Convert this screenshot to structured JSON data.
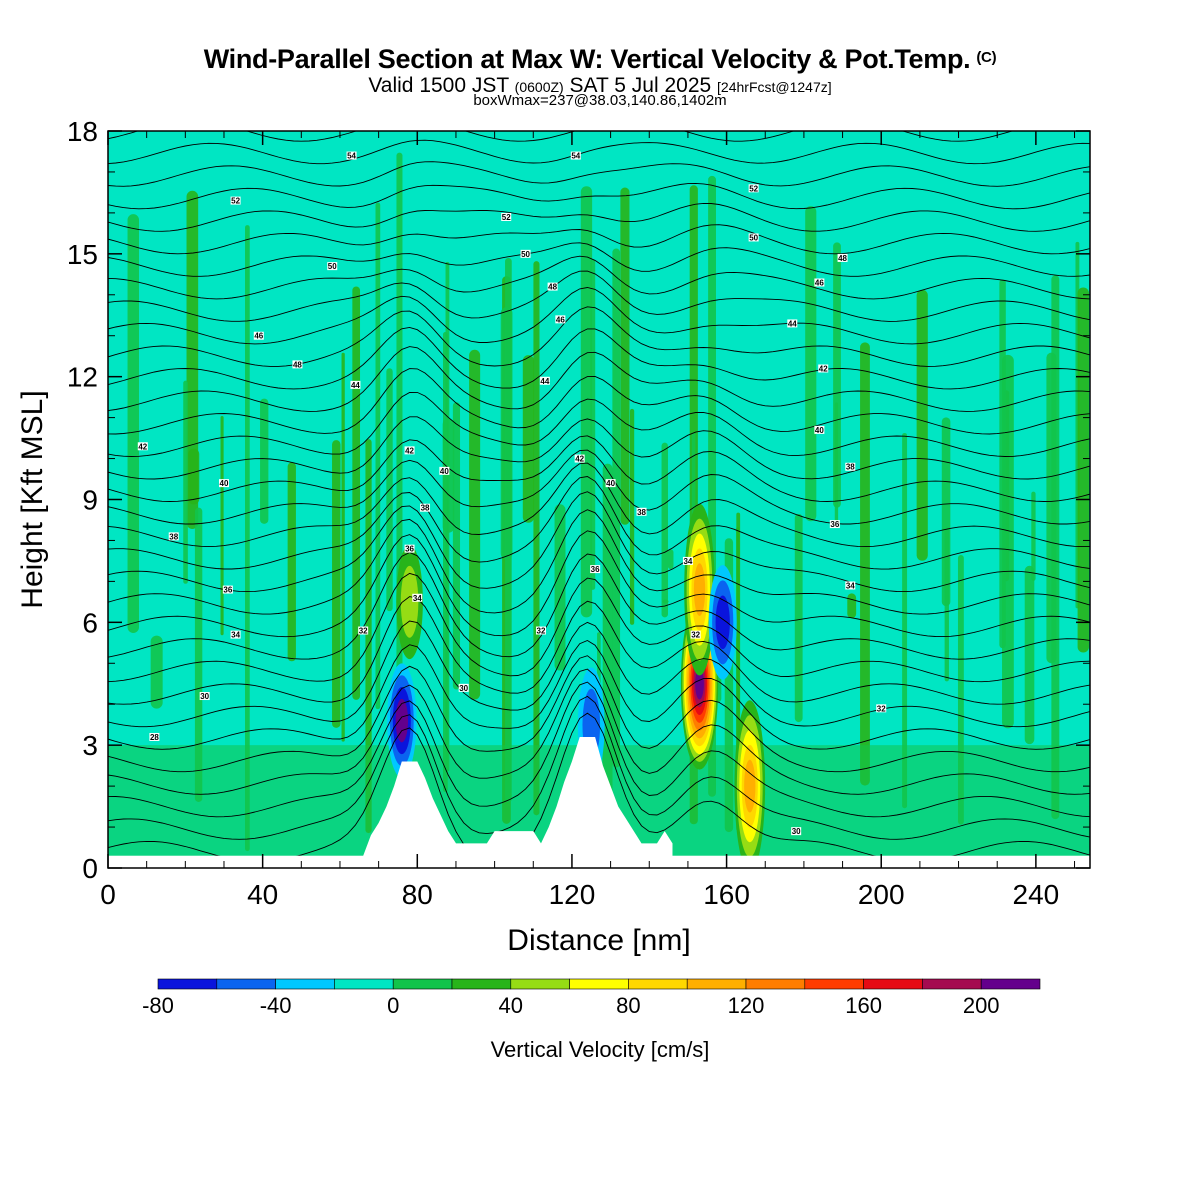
{
  "title": {
    "main": "Wind-Parallel Section at Max W: Vertical Velocity & Pot.Temp.",
    "copyright": "(C)",
    "valid_prefix": "Valid 1500 JST",
    "valid_utc": "(0600Z)",
    "valid_date": "SAT 5 Jul 2025",
    "forecast": "[24hrFcst@1247z]",
    "boxline": "boxWmax=237@38.03,140.86,1402m"
  },
  "chart_data": {
    "type": "heatmap",
    "xlabel": "Distance [nm]",
    "ylabel": "Height [Kft MSL]",
    "xlim": [
      0,
      254
    ],
    "ylim": [
      0,
      18
    ],
    "x_ticks": [
      0,
      40,
      80,
      120,
      160,
      200,
      240
    ],
    "y_ticks": [
      0,
      3,
      6,
      9,
      12,
      15,
      18
    ],
    "colorbar": {
      "label": "Vertical Velocity [cm/s]",
      "ticks": [
        -80,
        -40,
        0,
        40,
        80,
        120,
        160,
        200
      ],
      "bins": [
        {
          "from": -80,
          "to": -60,
          "color": "#0a14dc"
        },
        {
          "from": -60,
          "to": -40,
          "color": "#0a64f0"
        },
        {
          "from": -40,
          "to": -20,
          "color": "#00c8ff"
        },
        {
          "from": -20,
          "to": 0,
          "color": "#00e6c3"
        },
        {
          "from": 0,
          "to": 20,
          "color": "#12c44b"
        },
        {
          "from": 20,
          "to": 40,
          "color": "#28b41a"
        },
        {
          "from": 40,
          "to": 60,
          "color": "#96dc14"
        },
        {
          "from": 60,
          "to": 80,
          "color": "#ffff00"
        },
        {
          "from": 80,
          "to": 100,
          "color": "#ffd700"
        },
        {
          "from": 100,
          "to": 120,
          "color": "#ffaf00"
        },
        {
          "from": 120,
          "to": 140,
          "color": "#ff7d00"
        },
        {
          "from": 140,
          "to": 160,
          "color": "#ff3c00"
        },
        {
          "from": 160,
          "to": 180,
          "color": "#e60a14"
        },
        {
          "from": 180,
          "to": 200,
          "color": "#a50a50"
        },
        {
          "from": 200,
          "to": 220,
          "color": "#64008c"
        }
      ]
    },
    "terrain": [
      [
        66,
        0.3
      ],
      [
        68,
        0.8
      ],
      [
        70,
        1.1
      ],
      [
        72,
        1.5
      ],
      [
        74,
        2.0
      ],
      [
        76,
        2.6
      ],
      [
        80,
        2.6
      ],
      [
        82,
        2.2
      ],
      [
        84,
        1.7
      ],
      [
        86,
        1.3
      ],
      [
        88,
        0.9
      ],
      [
        90,
        0.6
      ],
      [
        98,
        0.6
      ],
      [
        100,
        0.9
      ],
      [
        110,
        0.9
      ],
      [
        112,
        0.6
      ],
      [
        114,
        1.0
      ],
      [
        116,
        1.5
      ],
      [
        118,
        2.1
      ],
      [
        120,
        2.6
      ],
      [
        122,
        3.2
      ],
      [
        126,
        3.2
      ],
      [
        128,
        2.5
      ],
      [
        130,
        2.0
      ],
      [
        132,
        1.5
      ],
      [
        134,
        1.2
      ],
      [
        136,
        0.9
      ],
      [
        138,
        0.6
      ],
      [
        142,
        0.6
      ],
      [
        144,
        0.9
      ],
      [
        146,
        0.6
      ]
    ],
    "w_features": [
      {
        "x": 76,
        "z": 3.6,
        "w": -80
      },
      {
        "x": 78,
        "z": 6.5,
        "w": 40
      },
      {
        "x": 125,
        "z": 3.5,
        "w": -40
      },
      {
        "x": 153,
        "z": 4.5,
        "w": 200
      },
      {
        "x": 153,
        "z": 6.8,
        "w": 100
      },
      {
        "x": 159,
        "z": 6.0,
        "w": -60
      },
      {
        "x": 166,
        "z": 2.0,
        "w": 100
      }
    ],
    "theta_contours": [
      {
        "label": "28",
        "x": 12,
        "y": 3.2
      },
      {
        "label": "30",
        "x": 25,
        "y": 4.2
      },
      {
        "label": "34",
        "x": 33,
        "y": 5.7
      },
      {
        "label": "36",
        "x": 31,
        "y": 6.8
      },
      {
        "label": "38",
        "x": 17,
        "y": 8.1
      },
      {
        "label": "40",
        "x": 30,
        "y": 9.4
      },
      {
        "label": "42",
        "x": 9,
        "y": 10.3
      },
      {
        "label": "46",
        "x": 39,
        "y": 13.0
      },
      {
        "label": "48",
        "x": 49,
        "y": 12.3
      },
      {
        "label": "44",
        "x": 64,
        "y": 11.8
      },
      {
        "label": "50",
        "x": 58,
        "y": 14.7
      },
      {
        "label": "52",
        "x": 33,
        "y": 16.3
      },
      {
        "label": "54",
        "x": 63,
        "y": 17.4
      },
      {
        "label": "32",
        "x": 66,
        "y": 5.8
      },
      {
        "label": "34",
        "x": 80,
        "y": 6.6
      },
      {
        "label": "36",
        "x": 78,
        "y": 7.8
      },
      {
        "label": "38",
        "x": 82,
        "y": 8.8
      },
      {
        "label": "42",
        "x": 78,
        "y": 10.2
      },
      {
        "label": "40",
        "x": 87,
        "y": 9.7
      },
      {
        "label": "30",
        "x": 92,
        "y": 4.4
      },
      {
        "label": "32",
        "x": 112,
        "y": 5.8
      },
      {
        "label": "36",
        "x": 126,
        "y": 7.3
      },
      {
        "label": "42",
        "x": 122,
        "y": 10.0
      },
      {
        "label": "40",
        "x": 130,
        "y": 9.4
      },
      {
        "label": "38",
        "x": 138,
        "y": 8.7
      },
      {
        "label": "44",
        "x": 113,
        "y": 11.9
      },
      {
        "label": "46",
        "x": 117,
        "y": 13.4
      },
      {
        "label": "48",
        "x": 115,
        "y": 14.2
      },
      {
        "label": "50",
        "x": 108,
        "y": 15.0
      },
      {
        "label": "52",
        "x": 103,
        "y": 15.9
      },
      {
        "label": "54",
        "x": 121,
        "y": 17.4
      },
      {
        "label": "34",
        "x": 150,
        "y": 7.5
      },
      {
        "label": "32",
        "x": 152,
        "y": 5.7
      },
      {
        "label": "52",
        "x": 167,
        "y": 16.6
      },
      {
        "label": "50",
        "x": 167,
        "y": 15.4
      },
      {
        "label": "48",
        "x": 190,
        "y": 14.9
      },
      {
        "label": "46",
        "x": 184,
        "y": 14.3
      },
      {
        "label": "44",
        "x": 177,
        "y": 13.3
      },
      {
        "label": "42",
        "x": 185,
        "y": 12.2
      },
      {
        "label": "40",
        "x": 184,
        "y": 10.7
      },
      {
        "label": "38",
        "x": 192,
        "y": 9.8
      },
      {
        "label": "36",
        "x": 188,
        "y": 8.4
      },
      {
        "label": "34",
        "x": 192,
        "y": 6.9
      },
      {
        "label": "32",
        "x": 200,
        "y": 3.9
      },
      {
        "label": "30",
        "x": 178,
        "y": 0.9
      }
    ]
  }
}
